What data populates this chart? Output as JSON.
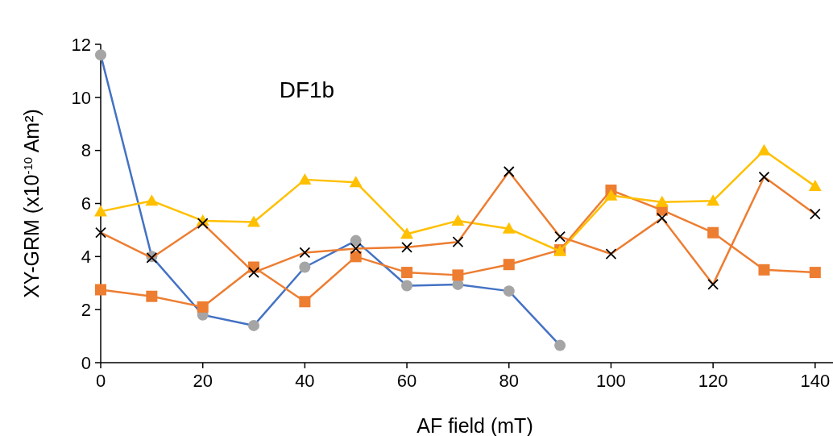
{
  "chart_data": {
    "type": "line",
    "title": "DF1b",
    "xlabel": "AF field (mT)",
    "ylabel": "XY-GRM (x10$^{-10}$ Am²)",
    "x": [
      0,
      10,
      20,
      30,
      40,
      50,
      60,
      70,
      80,
      90,
      100,
      110,
      120,
      130,
      140
    ],
    "xlim": [
      0,
      143.5
    ],
    "xticks": [
      0,
      20,
      40,
      60,
      80,
      100,
      120,
      140
    ],
    "ylim": [
      0,
      12
    ],
    "yticks": [
      0,
      2,
      4,
      6,
      8,
      10,
      12
    ],
    "grid": false,
    "series": [
      {
        "color": "#4472c4",
        "marker": "circle",
        "colors": [
          "#a5a5a5",
          "#a5a5a5",
          "#a5a5a5",
          "#a5a5a5",
          "#a5a5a5",
          "#a5a5a5",
          "#a5a5a5",
          "#a5a5a5",
          "#a5a5a5",
          "#a5a5a5",
          null,
          null,
          null,
          null,
          null
        ],
        "values": [
          11.6,
          4.0,
          1.8,
          1.4,
          3.6,
          4.6,
          2.9,
          2.95,
          2.7,
          0.65,
          null,
          null,
          null,
          null,
          null
        ]
      },
      {
        "color": "#ed7d31",
        "marker": "square",
        "values": [
          2.75,
          2.5,
          2.1,
          3.6,
          2.3,
          4.0,
          3.4,
          3.3,
          3.7,
          4.25,
          6.5,
          5.75,
          4.9,
          3.5,
          3.4
        ]
      },
      {
        "color": "#ffc000",
        "marker": "triangle",
        "values": [
          5.7,
          6.1,
          5.35,
          5.3,
          6.9,
          6.8,
          4.85,
          5.35,
          5.05,
          4.2,
          6.3,
          6.05,
          6.1,
          8.0,
          6.65
        ]
      },
      {
        "color": "#ed7d31",
        "marker": "cross",
        "colors": [
          "#000000",
          "#000000",
          "#000000",
          "#000000",
          "#000000",
          "#000000",
          "#000000",
          "#000000",
          "#000000",
          "#000000",
          "#000000",
          "#000000",
          "#000000",
          "#000000",
          "#000000"
        ],
        "values": [
          4.9,
          3.95,
          5.25,
          3.4,
          4.15,
          4.3,
          4.35,
          4.55,
          7.2,
          4.75,
          4.1,
          5.45,
          2.95,
          7.0,
          5.6
        ]
      }
    ]
  }
}
